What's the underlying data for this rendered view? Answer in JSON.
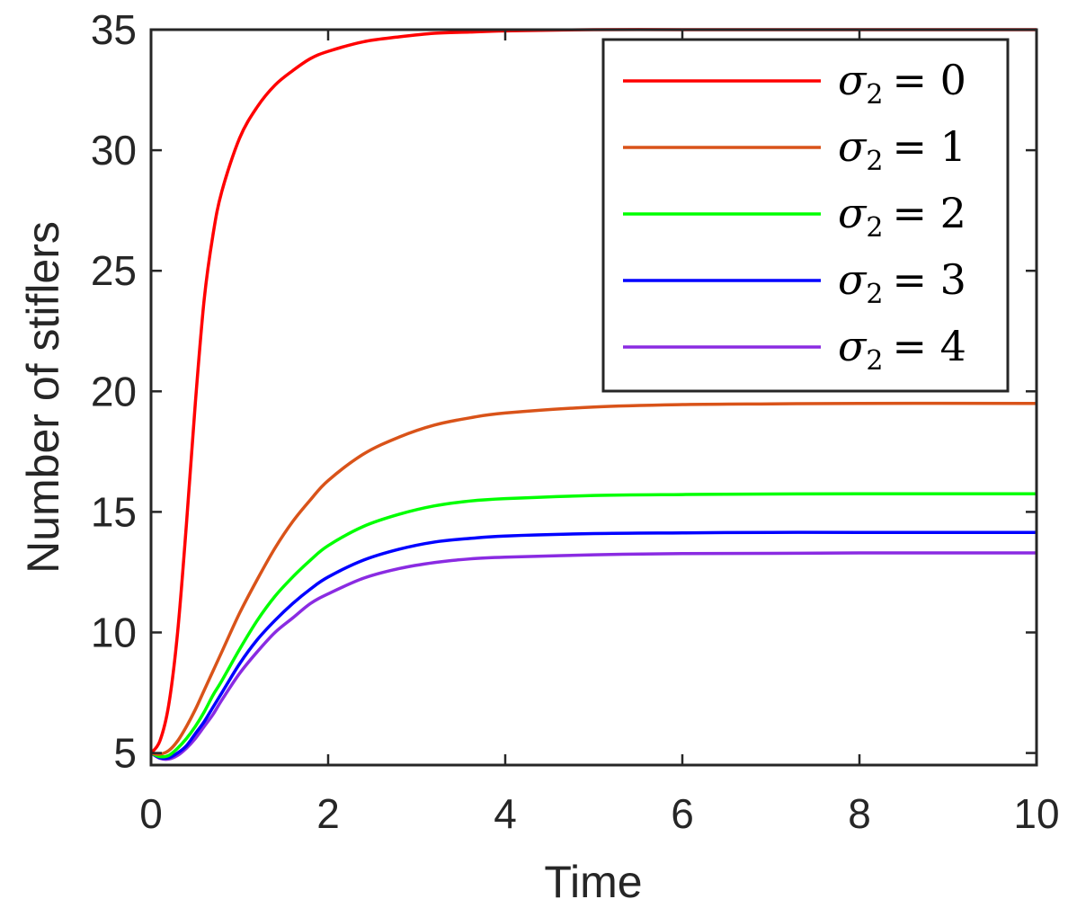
{
  "chart_data": {
    "type": "line",
    "title": "",
    "xlabel": "Time",
    "ylabel": "Number of stiflers",
    "xlim": [
      0,
      10
    ],
    "ylim": [
      4.5,
      35
    ],
    "xticks": [
      0,
      2,
      4,
      6,
      8,
      10
    ],
    "xtick_labels": [
      "0",
      "2",
      "4",
      "6",
      "8",
      "10"
    ],
    "yticks": [
      5,
      10,
      15,
      20,
      25,
      30,
      35
    ],
    "ytick_labels": [
      "5",
      "10",
      "15",
      "20",
      "25",
      "30",
      "35"
    ],
    "grid": false,
    "legend_position": "top-right",
    "x": [
      0,
      0.1,
      0.2,
      0.3,
      0.4,
      0.5,
      0.6,
      0.7,
      0.8,
      1.0,
      1.2,
      1.4,
      1.6,
      1.8,
      2.0,
      2.4,
      2.8,
      3.2,
      3.6,
      4.0,
      5.0,
      6.0,
      7.0,
      8.0,
      10.0
    ],
    "series": [
      {
        "name": "σ2 = 0",
        "legend_symbol": "σ",
        "legend_sub": "2",
        "legend_rhs": "= 0",
        "color": "#ff0000",
        "values": [
          5.0,
          5.5,
          7.0,
          10.0,
          14.5,
          19.5,
          23.8,
          26.5,
          28.3,
          30.5,
          31.8,
          32.7,
          33.3,
          33.8,
          34.1,
          34.5,
          34.7,
          34.85,
          34.9,
          34.95,
          35.0,
          35.0,
          35.0,
          35.0,
          35.0
        ]
      },
      {
        "name": "σ2 = 1",
        "legend_symbol": "σ",
        "legend_sub": "2",
        "legend_rhs": "= 1",
        "color": "#d95319",
        "values": [
          5.0,
          4.95,
          5.1,
          5.5,
          6.1,
          6.8,
          7.6,
          8.4,
          9.2,
          10.8,
          12.2,
          13.5,
          14.6,
          15.5,
          16.3,
          17.4,
          18.1,
          18.6,
          18.9,
          19.1,
          19.35,
          19.45,
          19.48,
          19.5,
          19.5
        ]
      },
      {
        "name": "σ2 = 2",
        "legend_symbol": "σ",
        "legend_sub": "2",
        "legend_rhs": "= 2",
        "color": "#00ff00",
        "values": [
          5.0,
          4.85,
          4.9,
          5.2,
          5.6,
          6.1,
          6.7,
          7.4,
          8.0,
          9.3,
          10.5,
          11.5,
          12.3,
          13.0,
          13.6,
          14.4,
          14.9,
          15.25,
          15.45,
          15.55,
          15.68,
          15.72,
          15.74,
          15.75,
          15.75
        ]
      },
      {
        "name": "σ2 = 3",
        "legend_symbol": "σ",
        "legend_sub": "2",
        "legend_rhs": "= 3",
        "color": "#0000ff",
        "values": [
          5.0,
          4.8,
          4.8,
          5.0,
          5.3,
          5.8,
          6.3,
          6.9,
          7.5,
          8.7,
          9.7,
          10.5,
          11.2,
          11.8,
          12.3,
          13.0,
          13.45,
          13.75,
          13.9,
          14.0,
          14.1,
          14.13,
          14.15,
          14.15,
          14.15
        ]
      },
      {
        "name": "σ2 = 4",
        "legend_symbol": "σ",
        "legend_sub": "2",
        "legend_rhs": "= 4",
        "color": "#8a2be2",
        "values": [
          5.0,
          4.78,
          4.75,
          4.9,
          5.2,
          5.6,
          6.1,
          6.6,
          7.2,
          8.3,
          9.2,
          10.0,
          10.6,
          11.2,
          11.6,
          12.25,
          12.65,
          12.9,
          13.05,
          13.12,
          13.22,
          13.27,
          13.28,
          13.3,
          13.3
        ]
      }
    ]
  }
}
